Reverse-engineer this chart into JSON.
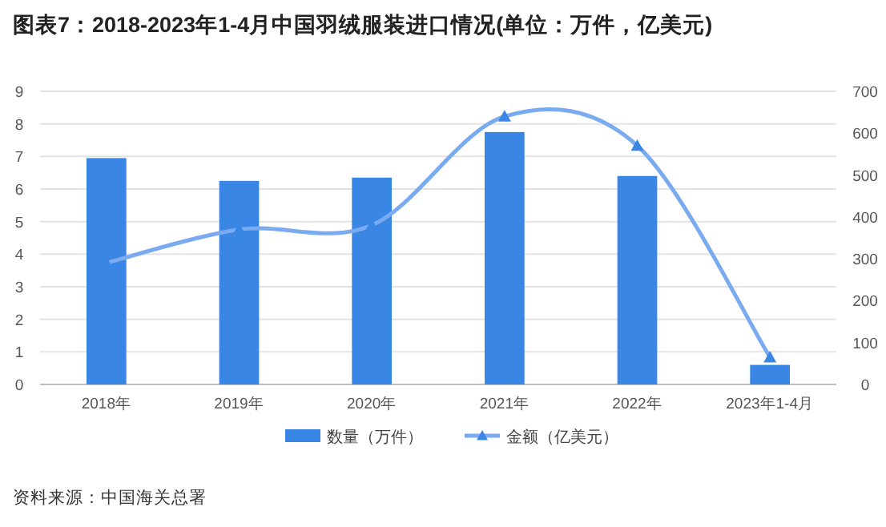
{
  "chart_data": {
    "type": "bar",
    "title": "图表7：2018-2023年1-4月中国羽绒服装进口情况(单位：万件，亿美元)",
    "categories": [
      "2018年",
      "2019年",
      "2020年",
      "2021年",
      "2022年",
      "2023年1-4月"
    ],
    "series": [
      {
        "name": "数量（万件）",
        "color": "#3a86e4",
        "values": [
          6.95,
          6.25,
          6.35,
          7.75,
          6.4,
          0.6
        ]
      },
      {
        "name": "金额（亿美元）",
        "type": "line",
        "axis": "y2",
        "color": "#7aaaf0",
        "values": [
          290,
          370,
          380,
          640,
          570,
          65
        ]
      }
    ],
    "ylim": [
      0,
      9
    ],
    "yticks": [
      0,
      1,
      2,
      3,
      4,
      5,
      6,
      7,
      8,
      9
    ],
    "y2lim": [
      0,
      700
    ],
    "y2ticks": [
      0,
      100,
      200,
      300,
      400,
      500,
      600,
      700
    ],
    "grid": "y",
    "legend": "bottom",
    "marker": "triangle",
    "annotations": [
      "资料来源：中国海关总署"
    ]
  }
}
